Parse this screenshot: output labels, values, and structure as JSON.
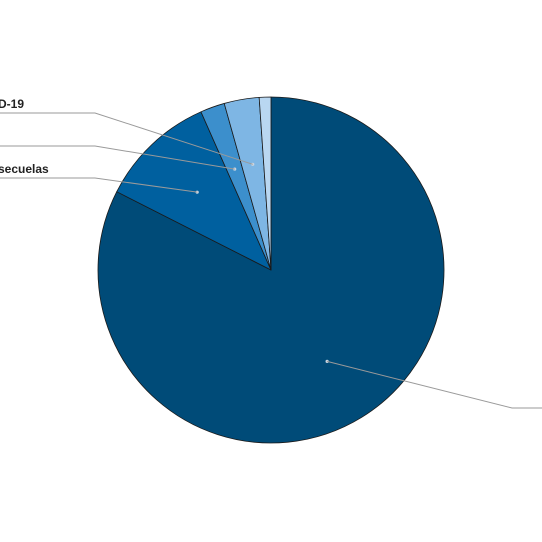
{
  "chart_data": {
    "type": "pie",
    "categories": [
      "",
      "secuelas",
      "",
      "D-19",
      ""
    ],
    "values": [
      83.3,
      11.0,
      2.3,
      3.3,
      1.1
    ],
    "colors": [
      "#004b78",
      "#00609f",
      "#3c8fcc",
      "#7eb6e4",
      "#b9d7f1"
    ],
    "start": "top",
    "direction": "clockwise",
    "legend": "none"
  }
}
